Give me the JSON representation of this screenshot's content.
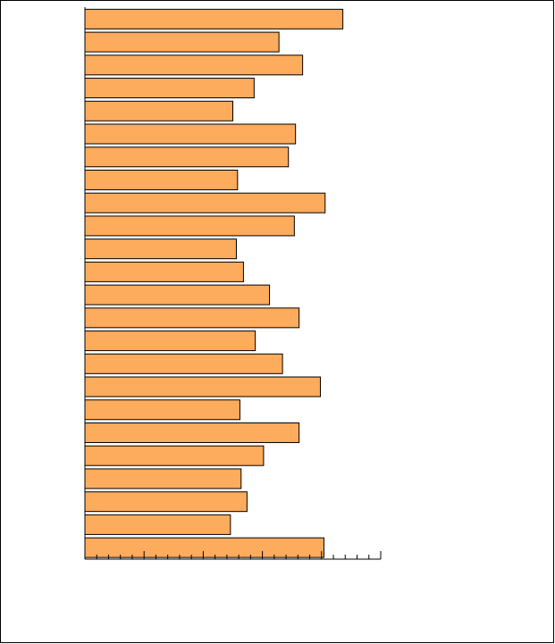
{
  "chart_data": {
    "type": "bar",
    "orientation": "horizontal",
    "categories": [
      null,
      null,
      null,
      null,
      null,
      null,
      null,
      null,
      null,
      null,
      null,
      null,
      null,
      null,
      null,
      null,
      null,
      null,
      null,
      null,
      null,
      null,
      null,
      null
    ],
    "values": [
      21.8,
      16.4,
      18.4,
      14.3,
      12.5,
      17.8,
      17.2,
      12.9,
      20.3,
      17.7,
      12.8,
      13.4,
      15.6,
      18.1,
      14.4,
      16.7,
      19.9,
      13.1,
      18.1,
      15.1,
      13.2,
      13.7,
      12.3,
      20.2
    ],
    "color": "#fdab5c",
    "xlim": [
      0,
      25
    ],
    "xticks": [
      0,
      5,
      10,
      15,
      20,
      25
    ],
    "xminorticks": [
      1,
      2,
      3,
      4,
      6,
      7,
      8,
      9,
      11,
      12,
      13,
      14,
      16,
      17,
      18,
      19,
      21,
      22,
      23,
      24
    ],
    "grid": false
  }
}
